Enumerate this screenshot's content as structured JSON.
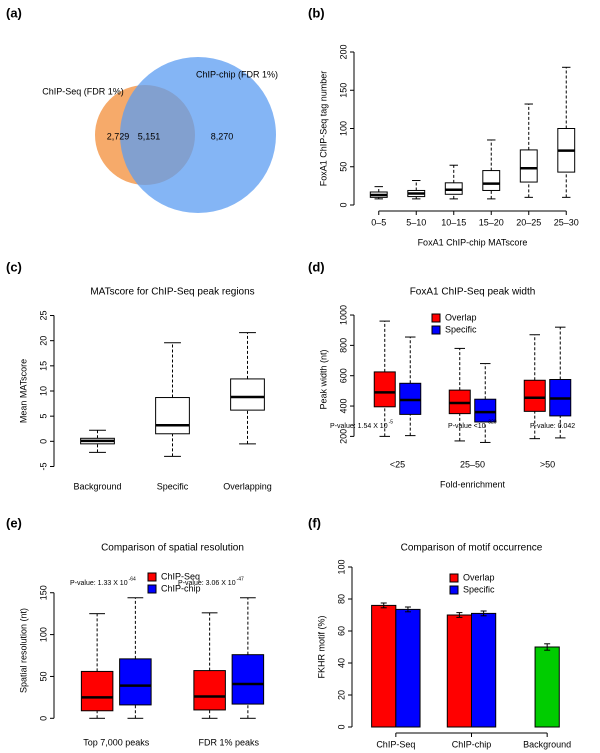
{
  "chart_data": [
    {
      "type": "venn",
      "panel": "(a)",
      "sets": [
        {
          "name": "ChIP-Seq (FDR 1%)",
          "color": "#f5a15a"
        },
        {
          "name": "ChIP-chip (FDR 1%)",
          "color": "#5b9cf2"
        }
      ],
      "values": [
        2729,
        5151,
        8270
      ],
      "value_labels": [
        "2,729",
        "5,151",
        "8,270"
      ]
    },
    {
      "type": "box",
      "panel": "(b)",
      "x_label": "FoxA1 ChIP-chip MATscore",
      "y_label": "FoxA1 ChIP-Seq tag number",
      "categories": [
        "0–5",
        "5–10",
        "10–15",
        "15–20",
        "20–25",
        "25–30"
      ],
      "color": "#ffffff",
      "boxes": [
        {
          "min": 8,
          "q1": 10,
          "median": 13,
          "q3": 17,
          "max": 24
        },
        {
          "min": 8,
          "q1": 11,
          "median": 15,
          "q3": 19,
          "max": 32
        },
        {
          "min": 8,
          "q1": 14,
          "median": 20,
          "q3": 29,
          "max": 52
        },
        {
          "min": 8,
          "q1": 19,
          "median": 28,
          "q3": 45,
          "max": 85
        },
        {
          "min": 10,
          "q1": 30,
          "median": 48,
          "q3": 72,
          "max": 132
        },
        {
          "min": 10,
          "q1": 43,
          "median": 71,
          "q3": 100,
          "max": 180
        }
      ],
      "ylim": [
        0,
        200
      ],
      "yticks": [
        0,
        50,
        100,
        150,
        200
      ]
    },
    {
      "type": "box",
      "panel": "(c)",
      "title": "MATscore for ChIP-Seq peak regions",
      "y_label": "Mean MATscore",
      "categories": [
        "Background",
        "Specific",
        "Overlapping"
      ],
      "color": "#ffffff",
      "boxes": [
        {
          "min": -2.2,
          "q1": -0.5,
          "median": 0.1,
          "q3": 0.6,
          "max": 2.2
        },
        {
          "min": -3,
          "q1": 1.5,
          "median": 3.2,
          "q3": 8.7,
          "max": 19.6
        },
        {
          "min": -0.5,
          "q1": 6.2,
          "median": 8.8,
          "q3": 12.4,
          "max": 21.6
        }
      ],
      "ylim": [
        -5.5,
        25.5
      ],
      "yticks": [
        -5,
        0,
        5,
        10,
        15,
        20,
        25
      ]
    },
    {
      "type": "grouped-box",
      "panel": "(d)",
      "title": "FoxA1 ChIP-Seq peak width",
      "y_label": "Peak width (nt)",
      "x_label": "Fold-enrichment",
      "categories": [
        "<25",
        "25–50",
        ">50"
      ],
      "series": [
        {
          "name": "Overlap",
          "color": "#ff0000",
          "boxes": [
            {
              "min": 200,
              "q1": 395,
              "median": 490,
              "q3": 625,
              "max": 960
            },
            {
              "min": 170,
              "q1": 350,
              "median": 420,
              "q3": 505,
              "max": 780
            },
            {
              "min": 185,
              "q1": 365,
              "median": 455,
              "q3": 570,
              "max": 870
            }
          ]
        },
        {
          "name": "Specific",
          "color": "#0000ff",
          "boxes": [
            {
              "min": 205,
              "q1": 345,
              "median": 440,
              "q3": 550,
              "max": 855
            },
            {
              "min": 160,
              "q1": 295,
              "median": 360,
              "q3": 445,
              "max": 680
            },
            {
              "min": 190,
              "q1": 335,
              "median": 450,
              "q3": 575,
              "max": 920
            }
          ]
        }
      ],
      "annotations": [
        {
          "text": "P-value: 1.54 X 10",
          "exponent": "-5"
        },
        {
          "text": "P-value <10",
          "exponent": "-320"
        },
        {
          "text": "P-value: 0.042"
        }
      ],
      "ylim": [
        130,
        1020
      ],
      "yticks": [
        200,
        400,
        600,
        800,
        1000
      ]
    },
    {
      "type": "grouped-box",
      "panel": "(e)",
      "title": "Comparison of spatial resolution",
      "y_label": "Spatial resolution (nt)",
      "categories": [
        "Top 7,000 peaks",
        "FDR 1% peaks"
      ],
      "series": [
        {
          "name": "ChIP-Seq",
          "color": "#ff0000",
          "boxes": [
            {
              "min": 0,
              "q1": 9,
              "median": 25,
              "q3": 56,
              "max": 125
            },
            {
              "min": 0,
              "q1": 10,
              "median": 26,
              "q3": 57,
              "max": 126
            }
          ]
        },
        {
          "name": "ChIP-chip",
          "color": "#0000ff",
          "boxes": [
            {
              "min": 0,
              "q1": 16,
              "median": 39,
              "q3": 71,
              "max": 144
            },
            {
              "min": 0,
              "q1": 17,
              "median": 41,
              "q3": 76,
              "max": 144
            }
          ]
        }
      ],
      "annotations": [
        {
          "text": "P-value: 1.33 X 10",
          "exponent": "-64"
        },
        {
          "text": "P-value: 3.06 X 10",
          "exponent": "-47"
        }
      ],
      "ylim": [
        -8,
        170
      ],
      "yticks": [
        0,
        50,
        100,
        150
      ]
    },
    {
      "type": "bar",
      "panel": "(f)",
      "title": "Comparison of motif occurrence",
      "y_label": "FKHR motif (%)",
      "categories": [
        "ChIP-Seq",
        "ChIP-chip",
        "Background"
      ],
      "series": [
        {
          "name": "Overlap",
          "color": "#ff0000",
          "values": [
            76,
            70,
            null
          ],
          "errors": [
            1.5,
            1.5,
            null
          ]
        },
        {
          "name": "Specific",
          "color": "#0000ff",
          "values": [
            73.5,
            71,
            null
          ],
          "errors": [
            1.5,
            1.5,
            null
          ]
        }
      ],
      "background": {
        "value": 50,
        "error": 2,
        "color": "#00cc00"
      },
      "ylim": [
        0,
        100
      ],
      "yticks": [
        0,
        20,
        40,
        60,
        80,
        100
      ]
    }
  ]
}
